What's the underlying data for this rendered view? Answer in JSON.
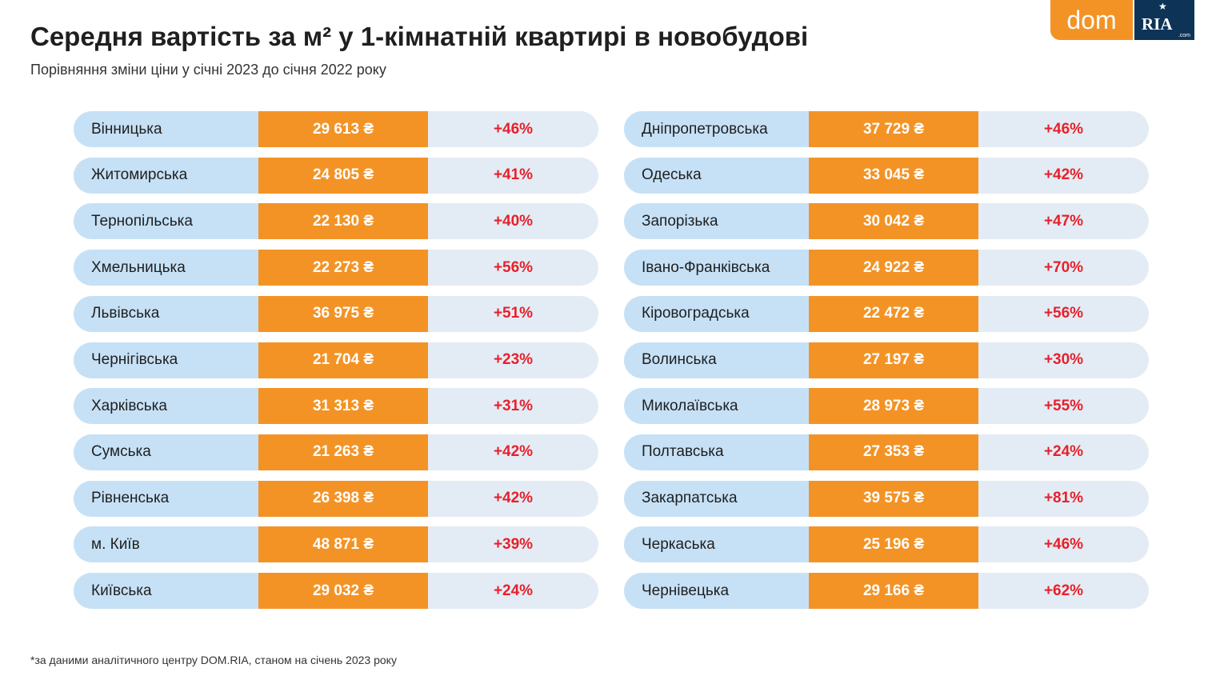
{
  "header": {
    "title": "Середня вартість за м² у 1-кімнатній квартирі в новобудові",
    "subtitle": "Порівняння зміни ціни у січні 2023 до січня 2022 року"
  },
  "logo": {
    "dom": "dom",
    "ria": "RIA",
    "com": ".com"
  },
  "colors": {
    "price_bg": "#f39325",
    "name_bg": "#c6e1f6",
    "pct_bg": "#e3ecf5",
    "pct_text": "#e8202a"
  },
  "chart_data": {
    "type": "table",
    "columns": [
      "region",
      "price_per_m2_uah",
      "change_vs_jan_2022"
    ],
    "left": [
      [
        "Вінницька",
        "29 613 ₴",
        "+46%"
      ],
      [
        "Житомирська",
        "24 805 ₴",
        "+41%"
      ],
      [
        "Тернопільська",
        "22 130 ₴",
        "+40%"
      ],
      [
        "Хмельницька",
        "22 273 ₴",
        "+56%"
      ],
      [
        "Львівська",
        "36 975 ₴",
        "+51%"
      ],
      [
        "Чернігівська",
        "21 704 ₴",
        "+23%"
      ],
      [
        "Харківська",
        "31 313 ₴",
        "+31%"
      ],
      [
        "Сумська",
        "21 263 ₴",
        "+42%"
      ],
      [
        "Рівненська",
        "26 398 ₴",
        "+42%"
      ],
      [
        "м. Київ",
        "48 871 ₴",
        "+39%"
      ],
      [
        "Київська",
        "29 032 ₴",
        "+24%"
      ]
    ],
    "right": [
      [
        "Дніпропетровська",
        "37 729 ₴",
        "+46%"
      ],
      [
        "Одеська",
        "33 045 ₴",
        "+42%"
      ],
      [
        "Запорізька",
        "30 042 ₴",
        "+47%"
      ],
      [
        "Івано-Франківська",
        "24 922 ₴",
        "+70%"
      ],
      [
        "Кіровоградська",
        "22 472 ₴",
        "+56%"
      ],
      [
        "Волинська",
        "27 197 ₴",
        "+30%"
      ],
      [
        "Миколаївська",
        "28 973 ₴",
        "+55%"
      ],
      [
        "Полтавська",
        "27 353 ₴",
        "+24%"
      ],
      [
        "Закарпатська",
        "39 575 ₴",
        "+81%"
      ],
      [
        "Черкаська",
        "25 196 ₴",
        "+46%"
      ],
      [
        "Чернівецька",
        "29 166 ₴",
        "+62%"
      ]
    ]
  },
  "footer": {
    "note": "*за даними аналітичного центру DOM.RIA, станом на січень 2023 року"
  }
}
